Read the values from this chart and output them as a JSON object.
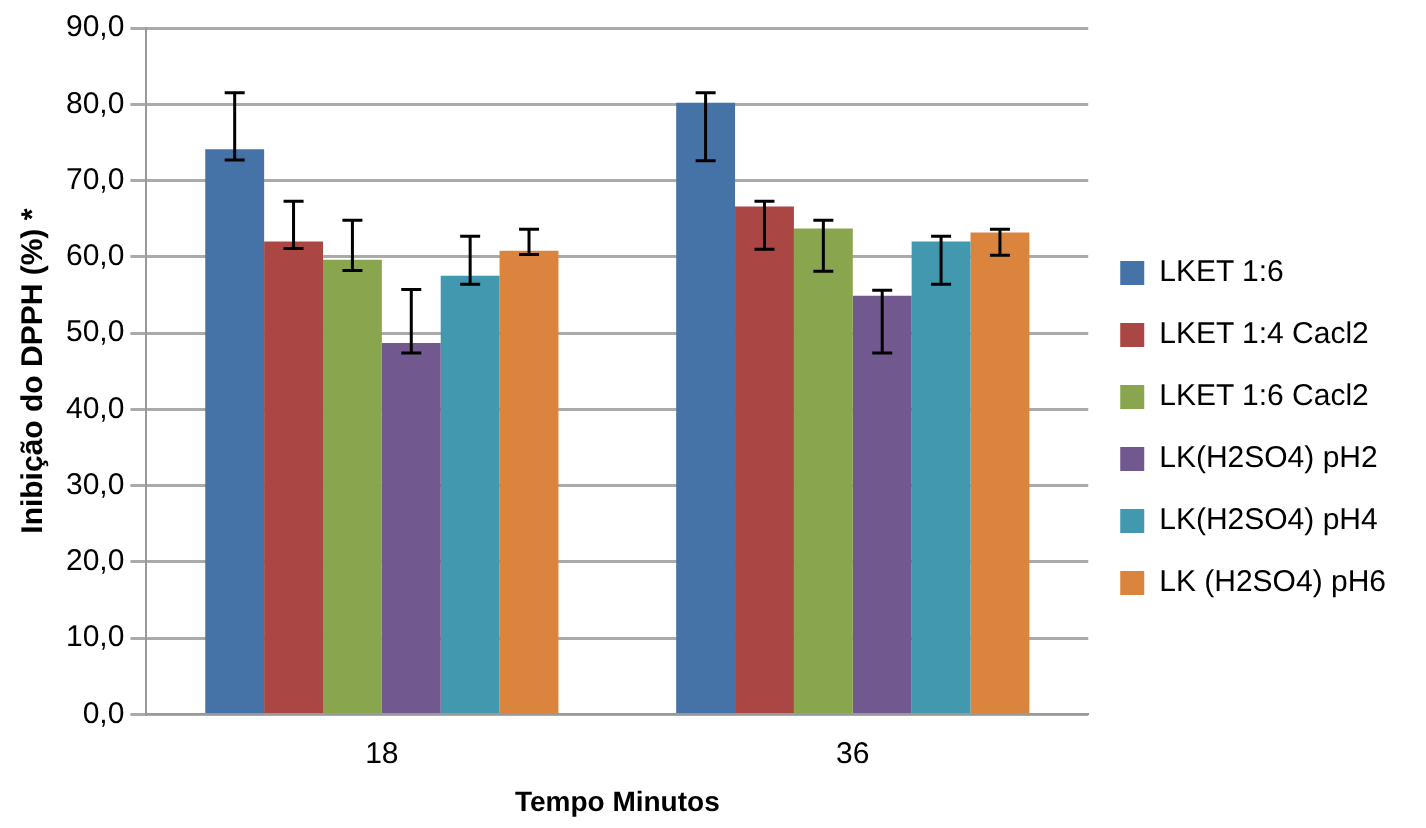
{
  "chart_data": {
    "type": "bar",
    "xlabel": "Tempo Minutos",
    "ylabel": "Inibição do DPPH (%) *",
    "categories": [
      "18",
      "36"
    ],
    "series": [
      {
        "name": "LKET 1:6",
        "color": "#4572a7",
        "values": [
          74.1,
          80.2
        ],
        "errors": [
          [
            72.7,
            81.5
          ],
          [
            72.6,
            81.5
          ]
        ]
      },
      {
        "name": "LKET 1:4 Cacl2",
        "color": "#aa4643",
        "values": [
          62.0,
          66.6
        ],
        "errors": [
          [
            61.1,
            67.3
          ],
          [
            61.0,
            67.3
          ]
        ]
      },
      {
        "name": "LKET 1:6 Cacl2",
        "color": "#89a54e",
        "values": [
          59.6,
          63.7
        ],
        "errors": [
          [
            58.2,
            64.8
          ],
          [
            58.1,
            64.8
          ]
        ]
      },
      {
        "name": "LK(H2SO4) pH2",
        "color": "#71588f",
        "values": [
          48.7,
          54.9
        ],
        "errors": [
          [
            47.4,
            55.7
          ],
          [
            47.4,
            55.6
          ]
        ]
      },
      {
        "name": "LK(H2SO4) pH4",
        "color": "#4198af",
        "values": [
          57.5,
          62.0
        ],
        "errors": [
          [
            56.4,
            62.7
          ],
          [
            56.4,
            62.7
          ]
        ]
      },
      {
        "name": "LK (H2SO4) pH6",
        "color": "#db843d",
        "values": [
          60.8,
          63.2
        ],
        "errors": [
          [
            60.3,
            63.6
          ],
          [
            60.2,
            63.6
          ]
        ]
      }
    ],
    "ylim": [
      0,
      90
    ],
    "yticks": [
      {
        "value": 0,
        "label": "0,0"
      },
      {
        "value": 10,
        "label": "10,0"
      },
      {
        "value": 20,
        "label": "20,0"
      },
      {
        "value": 30,
        "label": "30,0"
      },
      {
        "value": 40,
        "label": "40,0"
      },
      {
        "value": 50,
        "label": "50,0"
      },
      {
        "value": 60,
        "label": "60,0"
      },
      {
        "value": 70,
        "label": "70,0"
      },
      {
        "value": 80,
        "label": "80,0"
      },
      {
        "value": 90,
        "label": "90,0"
      }
    ],
    "grid": "y",
    "legend": "right"
  }
}
